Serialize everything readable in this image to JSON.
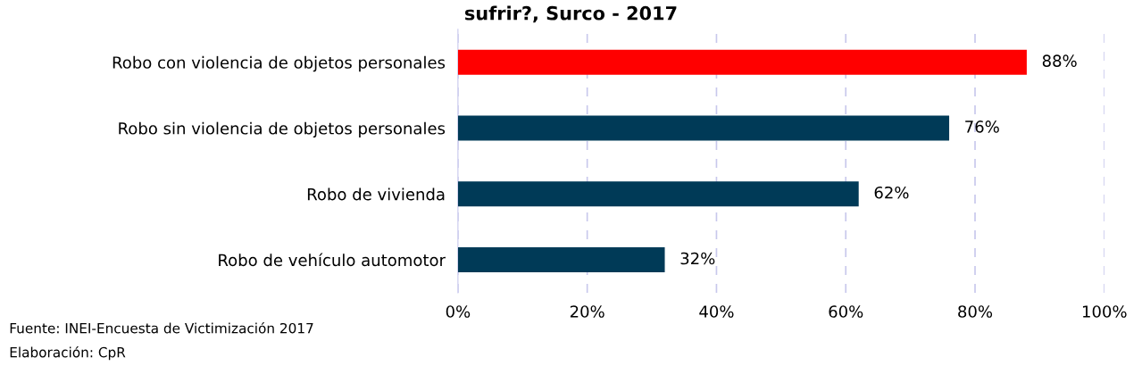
{
  "chart_data": {
    "type": "bar",
    "orientation": "horizontal",
    "title": "sufrir?, Surco - 2017",
    "categories": [
      "Robo con violencia de objetos personales",
      "Robo sin violencia de objetos personales",
      "Robo de vivienda",
      "Robo de vehículo automotor"
    ],
    "values": [
      88,
      76,
      62,
      32
    ],
    "colors": [
      "#ff0000",
      "#003a57",
      "#003a57",
      "#003a57"
    ],
    "value_labels": [
      "88%",
      "76%",
      "62%",
      "32%"
    ],
    "xlim": [
      0,
      100
    ],
    "xticks": [
      {
        "value": 0,
        "label": "0%"
      },
      {
        "value": 20,
        "label": "20%"
      },
      {
        "value": 40,
        "label": "40%"
      },
      {
        "value": 60,
        "label": "60%"
      },
      {
        "value": 80,
        "label": "80%"
      },
      {
        "value": 100,
        "label": "100%"
      }
    ],
    "grid": "x",
    "annotations": [
      "Fuente: INEI-Encuesta de Victimización 2017",
      "Elaboración: CpR"
    ]
  }
}
